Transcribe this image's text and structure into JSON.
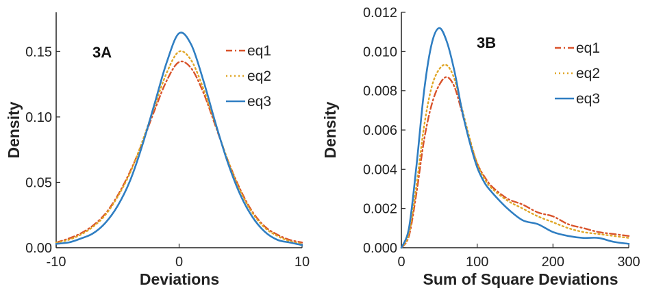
{
  "chart_data": [
    {
      "type": "line",
      "panel_label": "3A",
      "xlabel": "Deviations",
      "ylabel": "Density",
      "xlim": [
        -10,
        10
      ],
      "ylim": [
        0,
        0.18
      ],
      "xticks": [
        -10,
        0,
        10
      ],
      "xtick_labels": [
        "-10",
        "0",
        "10"
      ],
      "yticks": [
        0,
        0.05,
        0.1,
        0.15
      ],
      "ytick_labels": [
        "0.00",
        "0.05",
        "0.10",
        "0.15"
      ],
      "grid": false,
      "legend_position": "top-right",
      "series": [
        {
          "name": "eq1",
          "color": "#d9532b",
          "style": "dashdot",
          "x": [
            -10,
            -9,
            -8,
            -7,
            -6,
            -5,
            -4,
            -3,
            -2,
            -1,
            0,
            1,
            2,
            3,
            4,
            5,
            6,
            7,
            8,
            9,
            10
          ],
          "y": [
            0.004,
            0.007,
            0.011,
            0.017,
            0.026,
            0.04,
            0.058,
            0.08,
            0.105,
            0.128,
            0.142,
            0.137,
            0.118,
            0.092,
            0.066,
            0.044,
            0.027,
            0.016,
            0.01,
            0.006,
            0.004
          ]
        },
        {
          "name": "eq2",
          "color": "#e0a626",
          "style": "dotted",
          "x": [
            -10,
            -9,
            -8,
            -7,
            -6,
            -5,
            -4,
            -3,
            -2,
            -1,
            0,
            1,
            2,
            3,
            4,
            5,
            6,
            7,
            8,
            9,
            10
          ],
          "y": [
            0.004,
            0.006,
            0.01,
            0.016,
            0.025,
            0.039,
            0.057,
            0.081,
            0.108,
            0.134,
            0.15,
            0.143,
            0.121,
            0.093,
            0.066,
            0.043,
            0.026,
            0.015,
            0.009,
            0.005,
            0.003
          ]
        },
        {
          "name": "eq3",
          "color": "#2f7ec2",
          "style": "solid",
          "x": [
            -10,
            -9,
            -8,
            -7,
            -6,
            -5,
            -4,
            -3,
            -2,
            -1,
            0,
            1,
            2,
            3,
            4,
            5,
            6,
            7,
            8,
            9,
            10
          ],
          "y": [
            0.003,
            0.004,
            0.007,
            0.011,
            0.019,
            0.032,
            0.051,
            0.078,
            0.11,
            0.142,
            0.164,
            0.155,
            0.127,
            0.094,
            0.064,
            0.04,
            0.023,
            0.012,
            0.006,
            0.004,
            0.002
          ]
        }
      ]
    },
    {
      "type": "line",
      "panel_label": "3B",
      "xlabel": "Sum of Square Deviations",
      "ylabel": "Density",
      "xlim": [
        0,
        300
      ],
      "ylim": [
        0,
        0.012
      ],
      "xticks": [
        0,
        100,
        200,
        300
      ],
      "xtick_labels": [
        "0",
        "100",
        "200",
        "300"
      ],
      "yticks": [
        0,
        0.002,
        0.004,
        0.006,
        0.008,
        0.01,
        0.012
      ],
      "ytick_labels": [
        "0.000",
        "0.002",
        "0.004",
        "0.006",
        "0.008",
        "0.010",
        "0.012"
      ],
      "grid": false,
      "legend_position": "top-right",
      "series": [
        {
          "name": "eq1",
          "color": "#d9532b",
          "style": "dashdot",
          "x": [
            0,
            10,
            20,
            30,
            40,
            50,
            60,
            70,
            80,
            90,
            100,
            110,
            120,
            140,
            160,
            180,
            200,
            220,
            240,
            260,
            280,
            300
          ],
          "y": [
            0,
            0.0006,
            0.0028,
            0.0055,
            0.0073,
            0.0083,
            0.0087,
            0.0082,
            0.0069,
            0.0055,
            0.0043,
            0.0036,
            0.0031,
            0.0025,
            0.0022,
            0.0018,
            0.0016,
            0.0012,
            0.001,
            0.0008,
            0.0007,
            0.0006
          ]
        },
        {
          "name": "eq2",
          "color": "#e0a626",
          "style": "dotted",
          "x": [
            0,
            10,
            20,
            30,
            40,
            50,
            60,
            70,
            80,
            90,
            100,
            110,
            120,
            140,
            160,
            180,
            200,
            220,
            240,
            260,
            280,
            300
          ],
          "y": [
            0,
            0.0007,
            0.0032,
            0.0062,
            0.0082,
            0.0091,
            0.0093,
            0.0086,
            0.0071,
            0.0056,
            0.0043,
            0.0035,
            0.003,
            0.0024,
            0.002,
            0.0016,
            0.0013,
            0.001,
            0.0008,
            0.0007,
            0.0006,
            0.0005
          ]
        },
        {
          "name": "eq3",
          "color": "#2f7ec2",
          "style": "solid",
          "x": [
            0,
            10,
            20,
            30,
            40,
            50,
            60,
            70,
            80,
            90,
            100,
            110,
            120,
            140,
            160,
            180,
            200,
            220,
            240,
            260,
            280,
            300
          ],
          "y": [
            0,
            0.001,
            0.0042,
            0.008,
            0.0104,
            0.0112,
            0.0105,
            0.009,
            0.007,
            0.0054,
            0.0041,
            0.0033,
            0.0028,
            0.002,
            0.0014,
            0.0012,
            0.0008,
            0.0006,
            0.0005,
            0.0005,
            0.0003,
            0.0002
          ]
        }
      ]
    }
  ]
}
